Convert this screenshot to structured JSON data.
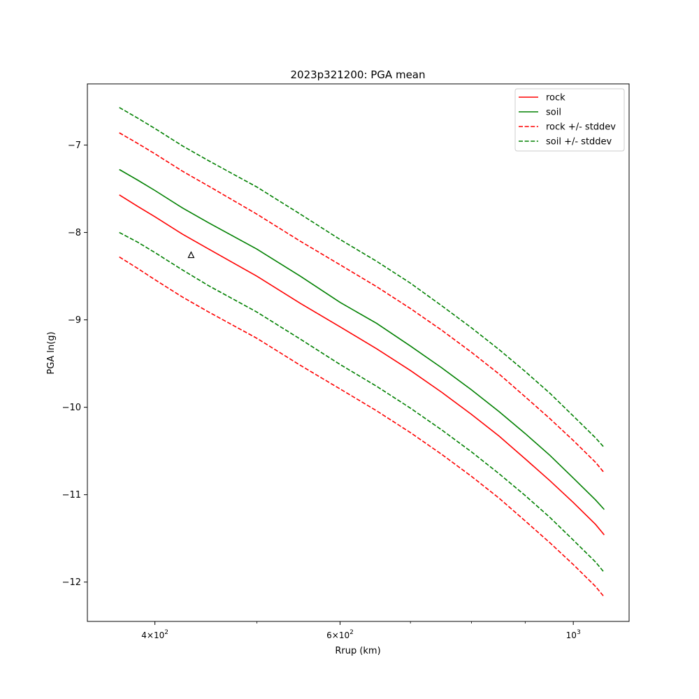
{
  "chart_data": {
    "type": "line",
    "title": "2023p321200: PGA mean",
    "xlabel": "Rrup (km)",
    "ylabel": "PGA ln(g)",
    "xscale": "log",
    "xlim": [
      345,
      1130
    ],
    "ylim": [
      -12.45,
      -6.3
    ],
    "x_ticks": [
      {
        "value": 400,
        "mant": "4",
        "exp": "2"
      },
      {
        "value": 600,
        "mant": "6",
        "exp": "2"
      },
      {
        "value": 1000,
        "mant": "",
        "exp": "3"
      }
    ],
    "x_minor_ticks": [
      500,
      700,
      800,
      900
    ],
    "y_ticks": [
      {
        "value": -7,
        "label": "−7"
      },
      {
        "value": -8,
        "label": "−8"
      },
      {
        "value": -9,
        "label": "−9"
      },
      {
        "value": -10,
        "label": "−10"
      },
      {
        "value": -11,
        "label": "−11"
      },
      {
        "value": -12,
        "label": "−12"
      }
    ],
    "legend": {
      "position": "top-right"
    },
    "series": [
      {
        "name": "rock",
        "color": "#ff0000",
        "dash": "solid",
        "x": [
          370,
          385,
          400,
          425,
          450,
          500,
          550,
          600,
          650,
          700,
          750,
          800,
          850,
          900,
          950,
          1000,
          1050,
          1070
        ],
        "y": [
          -7.57,
          -7.7,
          -7.82,
          -8.02,
          -8.19,
          -8.5,
          -8.81,
          -9.08,
          -9.33,
          -9.58,
          -9.83,
          -10.08,
          -10.33,
          -10.59,
          -10.84,
          -11.09,
          -11.34,
          -11.46
        ]
      },
      {
        "name": "soil",
        "color": "#008000",
        "dash": "solid",
        "x": [
          370,
          385,
          400,
          425,
          450,
          500,
          550,
          600,
          650,
          700,
          750,
          800,
          850,
          900,
          950,
          1000,
          1050,
          1070
        ],
        "y": [
          -7.28,
          -7.4,
          -7.52,
          -7.72,
          -7.89,
          -8.19,
          -8.5,
          -8.8,
          -9.04,
          -9.3,
          -9.55,
          -9.8,
          -10.05,
          -10.3,
          -10.55,
          -10.81,
          -11.06,
          -11.17
        ]
      },
      {
        "name": "rock +/- stddev",
        "color": "#ff0000",
        "dash": "dashed",
        "x": [
          370,
          385,
          400,
          425,
          450,
          500,
          550,
          600,
          650,
          700,
          750,
          800,
          850,
          900,
          950,
          1000,
          1050,
          1070
        ],
        "y": [
          -6.86,
          -6.98,
          -7.1,
          -7.3,
          -7.47,
          -7.79,
          -8.1,
          -8.37,
          -8.62,
          -8.87,
          -9.12,
          -9.37,
          -9.62,
          -9.88,
          -10.13,
          -10.38,
          -10.63,
          -10.75
        ]
      },
      {
        "name": "",
        "color": "#ff0000",
        "dash": "dashed",
        "x": [
          370,
          385,
          400,
          425,
          450,
          500,
          550,
          600,
          650,
          700,
          750,
          800,
          850,
          900,
          950,
          1000,
          1050,
          1070
        ],
        "y": [
          -8.28,
          -8.41,
          -8.54,
          -8.74,
          -8.91,
          -9.21,
          -9.52,
          -9.79,
          -10.04,
          -10.29,
          -10.54,
          -10.79,
          -11.04,
          -11.3,
          -11.55,
          -11.8,
          -12.05,
          -12.17
        ]
      },
      {
        "name": "soil +/- stddev",
        "color": "#008000",
        "dash": "dashed",
        "x": [
          370,
          385,
          400,
          425,
          450,
          500,
          550,
          600,
          650,
          700,
          750,
          800,
          850,
          900,
          950,
          1000,
          1050,
          1070
        ],
        "y": [
          -6.57,
          -6.69,
          -6.81,
          -7.01,
          -7.18,
          -7.48,
          -7.79,
          -8.08,
          -8.33,
          -8.58,
          -8.84,
          -9.09,
          -9.34,
          -9.59,
          -9.84,
          -10.1,
          -10.35,
          -10.46
        ]
      },
      {
        "name": "",
        "color": "#008000",
        "dash": "dashed",
        "x": [
          370,
          385,
          400,
          425,
          450,
          500,
          550,
          600,
          650,
          700,
          750,
          800,
          850,
          900,
          950,
          1000,
          1050,
          1070
        ],
        "y": [
          -8.0,
          -8.11,
          -8.23,
          -8.43,
          -8.61,
          -8.91,
          -9.22,
          -9.51,
          -9.76,
          -10.01,
          -10.26,
          -10.51,
          -10.76,
          -11.01,
          -11.26,
          -11.52,
          -11.77,
          -11.89
        ]
      }
    ],
    "observations": [
      {
        "x": 433,
        "y": -8.26,
        "marker": "triangle",
        "color": "#000000"
      }
    ]
  }
}
